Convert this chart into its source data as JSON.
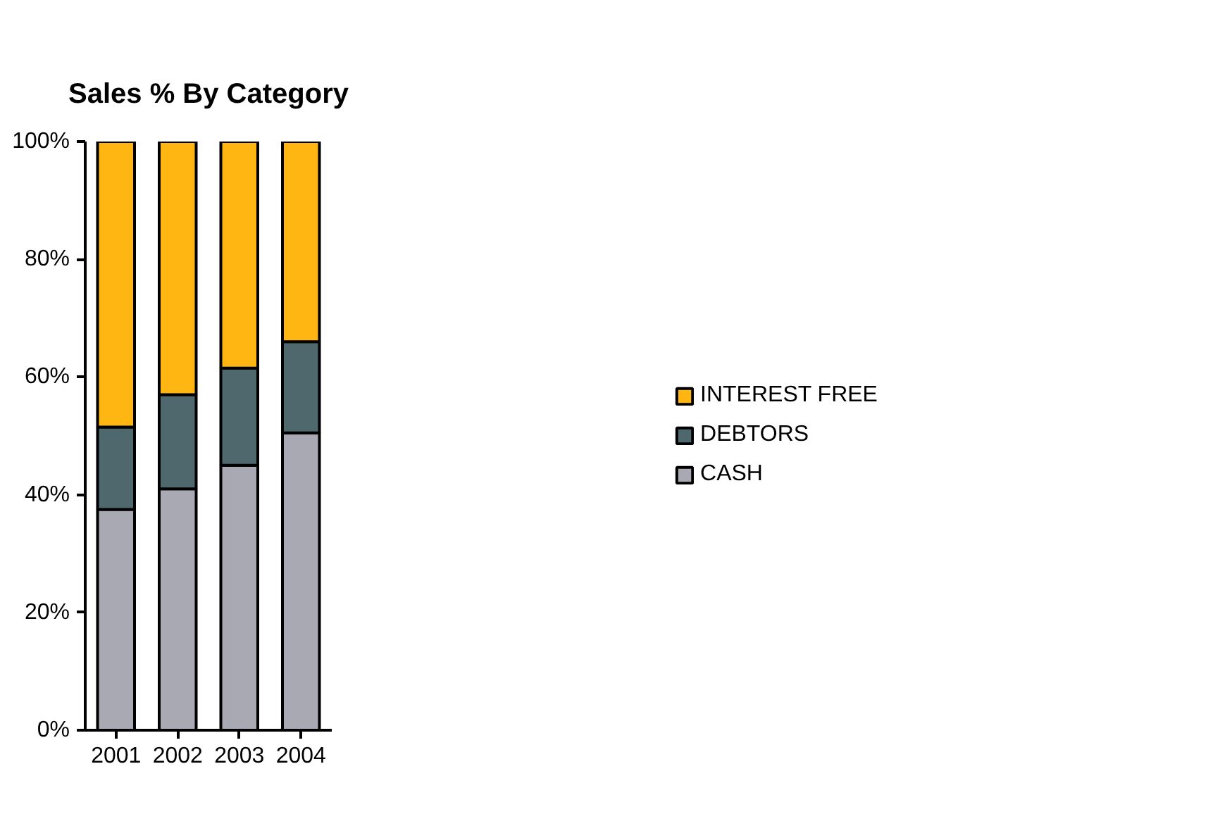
{
  "chart_data": {
    "type": "bar",
    "title": "Sales % By Category",
    "stacked": true,
    "categories": [
      "2001",
      "2002",
      "2003",
      "2004"
    ],
    "series": [
      {
        "name": "CASH",
        "color": "#a9a9b3",
        "values": [
          37.5,
          41,
          45,
          50.5
        ]
      },
      {
        "name": "DEBTORS",
        "color": "#4f686e",
        "values": [
          14,
          16,
          16.5,
          15.5
        ]
      },
      {
        "name": "INTEREST FREE",
        "color": "#ffb612",
        "values": [
          48.5,
          43,
          38.5,
          34
        ]
      }
    ],
    "ylim": [
      0,
      100
    ],
    "yticks": [
      {
        "value": 0,
        "label": "0%"
      },
      {
        "value": 20,
        "label": "20%"
      },
      {
        "value": 40,
        "label": "40%"
      },
      {
        "value": 60,
        "label": "60%"
      },
      {
        "value": 80,
        "label": "80%"
      },
      {
        "value": 100,
        "label": "100%"
      }
    ],
    "grid": false,
    "legend": "right"
  }
}
